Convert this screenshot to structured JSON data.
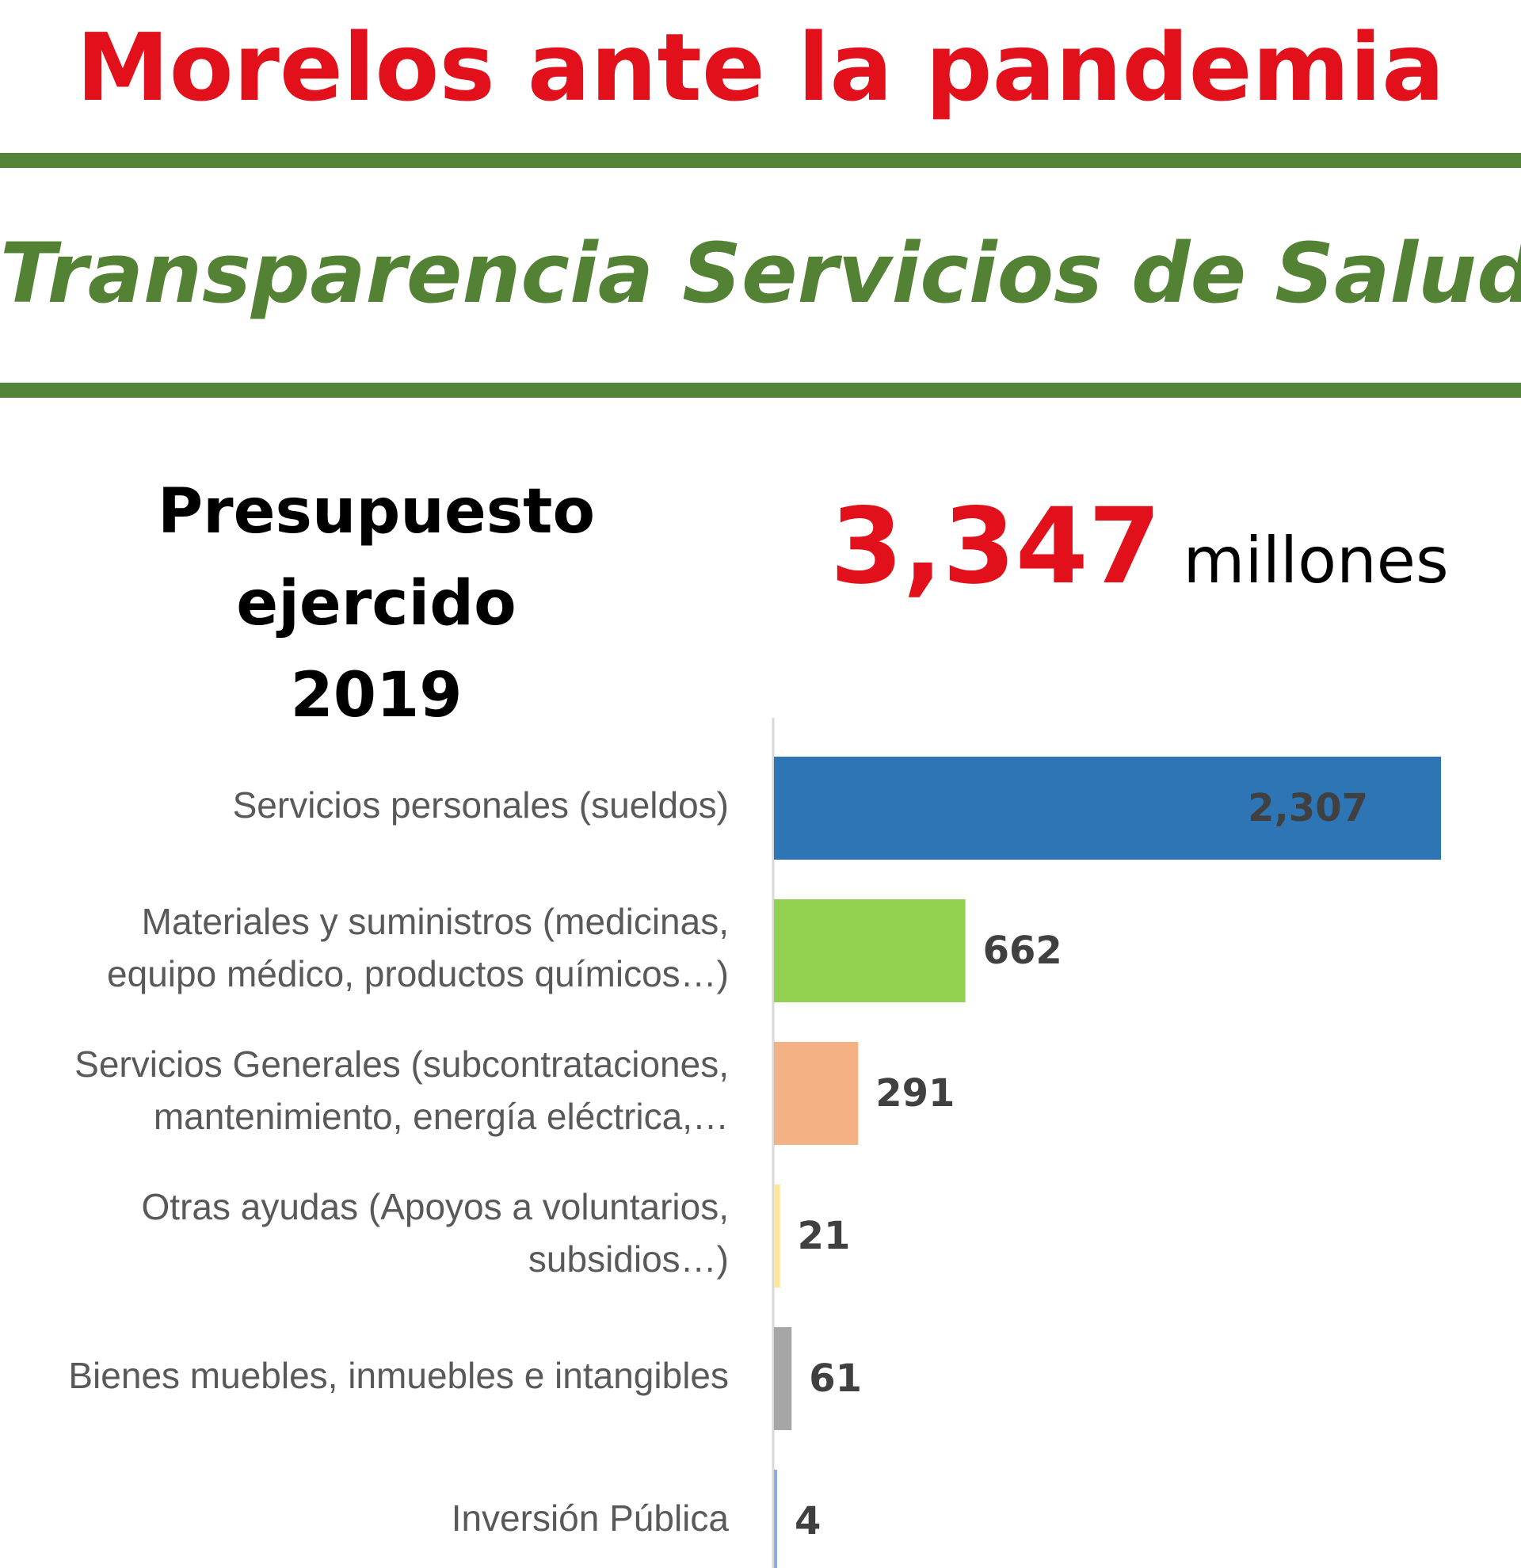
{
  "header": {
    "title": "Morelos ante la pandemia",
    "subtitle": "Transparencia Servicios de Salud"
  },
  "budget": {
    "label": "Presupuesto ejercido",
    "year": "2019",
    "total": "3,347",
    "unit": "millones"
  },
  "colors": {
    "title_red": "#e2101b",
    "brand_green": "#548235"
  },
  "chart_data": {
    "type": "bar",
    "orientation": "horizontal",
    "categories": [
      [
        "Servicios personales (sueldos)"
      ],
      [
        "Materiales y suministros (medicinas,",
        "equipo médico, productos químicos…)"
      ],
      [
        "Servicios Generales (subcontrataciones,",
        "mantenimiento, energía eléctrica,…"
      ],
      [
        "Otras ayudas (Apoyos a voluntarios,",
        "subsidios…)"
      ],
      [
        "Bienes muebles, inmuebles e intangibles"
      ],
      [
        "Inversión Pública"
      ]
    ],
    "values": [
      2307,
      662,
      291,
      21,
      61,
      4
    ],
    "value_labels": [
      "2,307",
      "662",
      "291",
      "21",
      "61",
      "4"
    ],
    "bar_colors": [
      "#2e75b6",
      "#92d050",
      "#f4b183",
      "#ffe699",
      "#a6a6a6",
      "#8faadc"
    ],
    "xlim": [
      0,
      2400
    ],
    "grid": false,
    "legend": "none",
    "data_labels": "outside-end; first bar inside-end"
  }
}
